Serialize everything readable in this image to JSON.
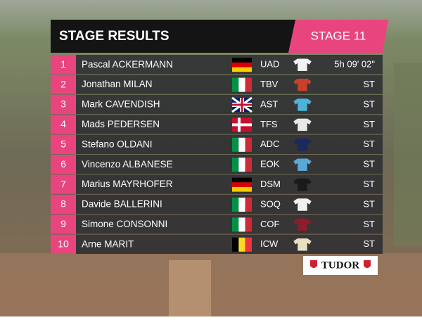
{
  "header": {
    "title": "STAGE RESULTS",
    "stage": "STAGE 11"
  },
  "rows": [
    {
      "rank": "1",
      "name": "Pascal ACKERMANN",
      "team": "UAD",
      "time": "5h 09' 02\""
    },
    {
      "rank": "2",
      "name": "Jonathan MILAN",
      "team": "TBV",
      "time": "ST"
    },
    {
      "rank": "3",
      "name": "Mark CAVENDISH",
      "team": "AST",
      "time": "ST"
    },
    {
      "rank": "4",
      "name": "Mads PEDERSEN",
      "team": "TFS",
      "time": "ST"
    },
    {
      "rank": "5",
      "name": "Stefano OLDANI",
      "team": "ADC",
      "time": "ST"
    },
    {
      "rank": "6",
      "name": "Vincenzo ALBANESE",
      "team": "EOK",
      "time": "ST"
    },
    {
      "rank": "7",
      "name": "Marius MAYRHOFER",
      "team": "DSM",
      "time": "ST"
    },
    {
      "rank": "8",
      "name": "Davide BALLERINI",
      "team": "SOQ",
      "time": "ST"
    },
    {
      "rank": "9",
      "name": "Simone CONSONNI",
      "team": "COF",
      "time": "ST"
    },
    {
      "rank": "10",
      "name": "Arne MARIT",
      "team": "ICW",
      "time": "ST"
    }
  ],
  "sponsor": "TUDOR"
}
